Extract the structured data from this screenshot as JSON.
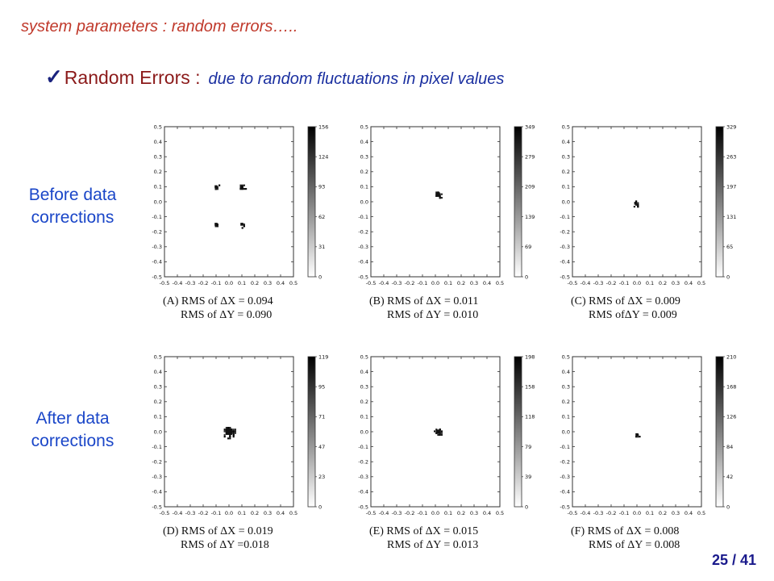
{
  "slide": {
    "section_title": "system parameters : random errors…..",
    "bullet_heading": "Random Errors :",
    "bullet_subtext": "due to random fluctuations in pixel values",
    "row_labels": {
      "before_line1": "Before data",
      "before_line2": "corrections",
      "after_line1": "After data",
      "after_line2": "corrections"
    },
    "page_number": "25 / 41",
    "colors": {
      "title": "#c0392b",
      "heading": "#8b1a1a",
      "subtext": "#1a2fa0",
      "row_label": "#1a46c8"
    }
  },
  "chart_data": [
    {
      "type": "heatmap",
      "panel": "A",
      "caption_line1": "(A)  RMS of ΔX = 0.094",
      "caption_line2": "RMS of ΔY = 0.090",
      "rms_x": 0.094,
      "rms_y": 0.09,
      "xlim": [
        -0.5,
        0.5
      ],
      "ylim": [
        -0.5,
        0.5
      ],
      "xticks": [
        "-0.5",
        "-0.4",
        "-0.3",
        "-0.2",
        "-0.1",
        "0.0",
        "0.1",
        "0.2",
        "0.3",
        "0.4",
        "0.5"
      ],
      "yticks": [
        "0.5",
        "0.4",
        "0.3",
        "0.2",
        "0.1",
        "0.0",
        "-0.1",
        "-0.2",
        "-0.3",
        "-0.4",
        "-0.5"
      ],
      "colorbar_ticks": [
        "156",
        "124",
        "93",
        "62",
        "31",
        "0"
      ],
      "clusters": [
        {
          "x": -0.1,
          "y": 0.1,
          "r": 0.02
        },
        {
          "x": 0.1,
          "y": 0.1,
          "r": 0.022
        },
        {
          "x": -0.1,
          "y": -0.15,
          "r": 0.008
        },
        {
          "x": 0.1,
          "y": -0.15,
          "r": 0.018
        }
      ]
    },
    {
      "type": "heatmap",
      "panel": "B",
      "caption_line1": "(B)  RMS of ΔX = 0.011",
      "caption_line2": "RMS of ΔY = 0.010",
      "rms_x": 0.011,
      "rms_y": 0.01,
      "xlim": [
        -0.5,
        0.5
      ],
      "ylim": [
        -0.5,
        0.5
      ],
      "xticks": [
        "-0.5",
        "-0.4",
        "-0.3",
        "-0.2",
        "-0.1",
        "0.0",
        "0.1",
        "0.2",
        "0.3",
        "0.4",
        "0.5"
      ],
      "yticks": [
        "0.5",
        "0.4",
        "0.3",
        "0.2",
        "0.1",
        "0.0",
        "-0.1",
        "-0.2",
        "-0.3",
        "-0.4",
        "-0.5"
      ],
      "colorbar_ticks": [
        "349",
        "279",
        "209",
        "139",
        "69",
        "0"
      ],
      "clusters": [
        {
          "x": 0.02,
          "y": 0.05,
          "r": 0.028
        }
      ]
    },
    {
      "type": "heatmap",
      "panel": "C",
      "caption_line1": "(C)  RMS of ΔX = 0.009",
      "caption_line2": "RMS ofΔY = 0.009",
      "rms_x": 0.009,
      "rms_y": 0.009,
      "xlim": [
        -0.5,
        0.5
      ],
      "ylim": [
        -0.5,
        0.5
      ],
      "xticks": [
        "-0.5",
        "-0.4",
        "-0.3",
        "-0.2",
        "-0.1",
        "0.0",
        "0.1",
        "0.2",
        "0.3",
        "0.4",
        "0.5"
      ],
      "yticks": [
        "0.5",
        "0.4",
        "0.3",
        "0.2",
        "0.1",
        "0.0",
        "-0.1",
        "-0.2",
        "-0.3",
        "-0.4",
        "-0.5"
      ],
      "colorbar_ticks": [
        "329",
        "263",
        "197",
        "131",
        "65",
        "0"
      ],
      "clusters": [
        {
          "x": -0.01,
          "y": -0.01,
          "r": 0.02
        }
      ]
    },
    {
      "type": "heatmap",
      "panel": "D",
      "caption_line1": "(D)  RMS of ΔX = 0.019",
      "caption_line2": "RMS of ΔY =0.018",
      "rms_x": 0.019,
      "rms_y": 0.018,
      "xlim": [
        -0.5,
        0.5
      ],
      "ylim": [
        -0.5,
        0.5
      ],
      "xticks": [
        "-0.5",
        "-0.4",
        "-0.3",
        "-0.2",
        "-0.1",
        "0.0",
        "0.1",
        "0.2",
        "0.3",
        "0.4",
        "0.5"
      ],
      "yticks": [
        "0.5",
        "0.4",
        "0.3",
        "0.2",
        "0.1",
        "0.0",
        "-0.1",
        "-0.2",
        "-0.3",
        "-0.4",
        "-0.5"
      ],
      "colorbar_ticks": [
        "119",
        "95",
        "71",
        "47",
        "23",
        "0"
      ],
      "clusters": [
        {
          "x": 0.0,
          "y": 0.0,
          "r": 0.045
        }
      ]
    },
    {
      "type": "heatmap",
      "panel": "E",
      "caption_line1": "(E)  RMS of ΔX = 0.015",
      "caption_line2": "RMS of ΔY = 0.013",
      "rms_x": 0.015,
      "rms_y": 0.013,
      "xlim": [
        -0.5,
        0.5
      ],
      "ylim": [
        -0.5,
        0.5
      ],
      "xticks": [
        "-0.5",
        "-0.4",
        "-0.3",
        "-0.2",
        "-0.1",
        "0.0",
        "0.1",
        "0.2",
        "0.3",
        "0.4",
        "0.5"
      ],
      "yticks": [
        "0.5",
        "0.4",
        "0.3",
        "0.2",
        "0.1",
        "0.0",
        "-0.1",
        "-0.2",
        "-0.3",
        "-0.4",
        "-0.5"
      ],
      "colorbar_ticks": [
        "198",
        "158",
        "118",
        "79",
        "39",
        "0"
      ],
      "clusters": [
        {
          "x": 0.02,
          "y": 0.0,
          "r": 0.03
        }
      ]
    },
    {
      "type": "heatmap",
      "panel": "F",
      "caption_line1": "(F)  RMS of ΔX = 0.008",
      "caption_line2": "RMS of ΔY = 0.008",
      "rms_x": 0.008,
      "rms_y": 0.008,
      "xlim": [
        -0.5,
        0.5
      ],
      "ylim": [
        -0.5,
        0.5
      ],
      "xticks": [
        "-0.5",
        "-0.4",
        "-0.3",
        "-0.2",
        "-0.1",
        "0.0",
        "0.1",
        "0.2",
        "0.3",
        "0.4",
        "0.5"
      ],
      "yticks": [
        "0.5",
        "0.4",
        "0.3",
        "0.2",
        "0.1",
        "0.0",
        "-0.1",
        "-0.2",
        "-0.3",
        "-0.4",
        "-0.5"
      ],
      "colorbar_ticks": [
        "210",
        "168",
        "126",
        "84",
        "42",
        "0"
      ],
      "clusters": [
        {
          "x": 0.0,
          "y": -0.02,
          "r": 0.015
        }
      ]
    }
  ]
}
